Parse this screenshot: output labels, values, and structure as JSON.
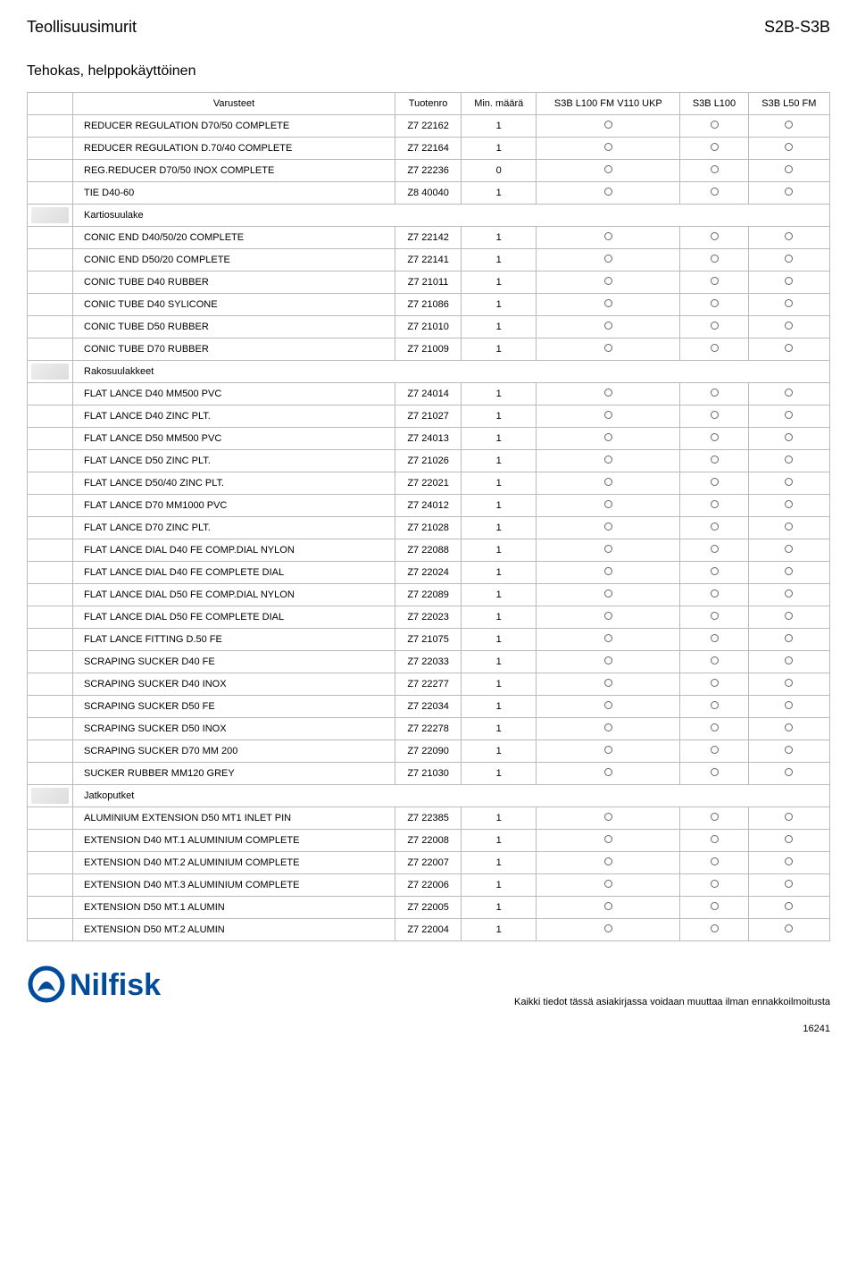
{
  "header": {
    "left": "Teollisuusimurit",
    "right": "S2B-S3B",
    "subhead": "Tehokas, helppokäyttöinen"
  },
  "columns": {
    "image": "",
    "name": "Varusteet",
    "sku": "Tuotenro",
    "min": "Min. määrä",
    "c1": "S3B L100 FM V110 UKP",
    "c2": "S3B L100",
    "c3": "S3B L50 FM"
  },
  "rows": [
    {
      "type": "item",
      "name": "REDUCER REGULATION D70/50 COMPLETE",
      "sku": "Z7 22162",
      "min": "1",
      "c1": true,
      "c2": true,
      "c3": true
    },
    {
      "type": "item",
      "name": "REDUCER REGULATION D.70/40 COMPLETE",
      "sku": "Z7 22164",
      "min": "1",
      "c1": true,
      "c2": true,
      "c3": true
    },
    {
      "type": "item",
      "name": "REG.REDUCER D70/50 INOX COMPLETE",
      "sku": "Z7 22236",
      "min": "0",
      "c1": true,
      "c2": true,
      "c3": true
    },
    {
      "type": "item",
      "name": "TIE D40-60",
      "sku": "Z8 40040",
      "min": "1",
      "c1": true,
      "c2": true,
      "c3": true
    },
    {
      "type": "group",
      "name": "Kartiosuulake",
      "thumb": true
    },
    {
      "type": "item",
      "name": "CONIC END D40/50/20 COMPLETE",
      "sku": "Z7 22142",
      "min": "1",
      "c1": true,
      "c2": true,
      "c3": true
    },
    {
      "type": "item",
      "name": "CONIC END D50/20 COMPLETE",
      "sku": "Z7 22141",
      "min": "1",
      "c1": true,
      "c2": true,
      "c3": true
    },
    {
      "type": "item",
      "name": "CONIC TUBE D40 RUBBER",
      "sku": "Z7 21011",
      "min": "1",
      "c1": true,
      "c2": true,
      "c3": true
    },
    {
      "type": "item",
      "name": "CONIC TUBE D40 SYLICONE",
      "sku": "Z7 21086",
      "min": "1",
      "c1": true,
      "c2": true,
      "c3": true
    },
    {
      "type": "item",
      "name": "CONIC TUBE D50 RUBBER",
      "sku": "Z7 21010",
      "min": "1",
      "c1": true,
      "c2": true,
      "c3": true
    },
    {
      "type": "item",
      "name": "CONIC TUBE D70 RUBBER",
      "sku": "Z7 21009",
      "min": "1",
      "c1": true,
      "c2": true,
      "c3": true
    },
    {
      "type": "group",
      "name": "Rakosuulakkeet",
      "thumb": true
    },
    {
      "type": "item",
      "name": "FLAT LANCE D40 MM500 PVC",
      "sku": "Z7 24014",
      "min": "1",
      "c1": true,
      "c2": true,
      "c3": true
    },
    {
      "type": "item",
      "name": "FLAT LANCE D40 ZINC PLT.",
      "sku": "Z7 21027",
      "min": "1",
      "c1": true,
      "c2": true,
      "c3": true
    },
    {
      "type": "item",
      "name": "FLAT LANCE D50 MM500 PVC",
      "sku": "Z7 24013",
      "min": "1",
      "c1": true,
      "c2": true,
      "c3": true
    },
    {
      "type": "item",
      "name": "FLAT LANCE D50 ZINC PLT.",
      "sku": "Z7 21026",
      "min": "1",
      "c1": true,
      "c2": true,
      "c3": true
    },
    {
      "type": "item",
      "name": "FLAT LANCE D50/40 ZINC PLT.",
      "sku": "Z7 22021",
      "min": "1",
      "c1": true,
      "c2": true,
      "c3": true
    },
    {
      "type": "item",
      "name": "FLAT LANCE D70 MM1000 PVC",
      "sku": "Z7 24012",
      "min": "1",
      "c1": true,
      "c2": true,
      "c3": true
    },
    {
      "type": "item",
      "name": "FLAT LANCE D70 ZINC PLT.",
      "sku": "Z7 21028",
      "min": "1",
      "c1": true,
      "c2": true,
      "c3": true
    },
    {
      "type": "item",
      "name": "FLAT LANCE DIAL D40 FE COMP.DIAL NYLON",
      "sku": "Z7 22088",
      "min": "1",
      "c1": true,
      "c2": true,
      "c3": true
    },
    {
      "type": "item",
      "name": "FLAT LANCE DIAL D40 FE COMPLETE DIAL",
      "sku": "Z7 22024",
      "min": "1",
      "c1": true,
      "c2": true,
      "c3": true
    },
    {
      "type": "item",
      "name": "FLAT LANCE DIAL D50 FE COMP.DIAL NYLON",
      "sku": "Z7 22089",
      "min": "1",
      "c1": true,
      "c2": true,
      "c3": true
    },
    {
      "type": "item",
      "name": "FLAT LANCE DIAL D50 FE COMPLETE DIAL",
      "sku": "Z7 22023",
      "min": "1",
      "c1": true,
      "c2": true,
      "c3": true
    },
    {
      "type": "item",
      "name": "FLAT LANCE FITTING D.50 FE",
      "sku": "Z7 21075",
      "min": "1",
      "c1": true,
      "c2": true,
      "c3": true
    },
    {
      "type": "item",
      "name": "SCRAPING SUCKER D40 FE",
      "sku": "Z7 22033",
      "min": "1",
      "c1": true,
      "c2": true,
      "c3": true
    },
    {
      "type": "item",
      "name": "SCRAPING SUCKER D40 INOX",
      "sku": "Z7 22277",
      "min": "1",
      "c1": true,
      "c2": true,
      "c3": true
    },
    {
      "type": "item",
      "name": "SCRAPING SUCKER D50 FE",
      "sku": "Z7 22034",
      "min": "1",
      "c1": true,
      "c2": true,
      "c3": true
    },
    {
      "type": "item",
      "name": "SCRAPING SUCKER D50 INOX",
      "sku": "Z7 22278",
      "min": "1",
      "c1": true,
      "c2": true,
      "c3": true
    },
    {
      "type": "item",
      "name": "SCRAPING SUCKER D70 MM 200",
      "sku": "Z7 22090",
      "min": "1",
      "c1": true,
      "c2": true,
      "c3": true
    },
    {
      "type": "item",
      "name": "SUCKER RUBBER MM120 GREY",
      "sku": "Z7 21030",
      "min": "1",
      "c1": true,
      "c2": true,
      "c3": true
    },
    {
      "type": "group",
      "name": "Jatkoputket",
      "thumb": true
    },
    {
      "type": "item",
      "name": "ALUMINIUM EXTENSION D50 MT1 INLET PIN",
      "sku": "Z7 22385",
      "min": "1",
      "c1": true,
      "c2": true,
      "c3": true
    },
    {
      "type": "item",
      "name": "EXTENSION D40 MT.1 ALUMINIUM COMPLETE",
      "sku": "Z7 22008",
      "min": "1",
      "c1": true,
      "c2": true,
      "c3": true
    },
    {
      "type": "item",
      "name": "EXTENSION D40 MT.2 ALUMINIUM COMPLETE",
      "sku": "Z7 22007",
      "min": "1",
      "c1": true,
      "c2": true,
      "c3": true
    },
    {
      "type": "item",
      "name": "EXTENSION D40 MT.3 ALUMINIUM COMPLETE",
      "sku": "Z7 22006",
      "min": "1",
      "c1": true,
      "c2": true,
      "c3": true
    },
    {
      "type": "item",
      "name": "EXTENSION D50 MT.1 ALUMIN",
      "sku": "Z7 22005",
      "min": "1",
      "c1": true,
      "c2": true,
      "c3": true
    },
    {
      "type": "item",
      "name": "EXTENSION D50 MT.2 ALUMIN",
      "sku": "Z7 22004",
      "min": "1",
      "c1": true,
      "c2": true,
      "c3": true
    }
  ],
  "footer": {
    "brand": "Nilfisk",
    "brand_color": "#004b9b",
    "note": "Kaikki tiedot tässä asiakirjassa voidaan muuttaa ilman ennakkoilmoitusta",
    "page": "16241"
  }
}
